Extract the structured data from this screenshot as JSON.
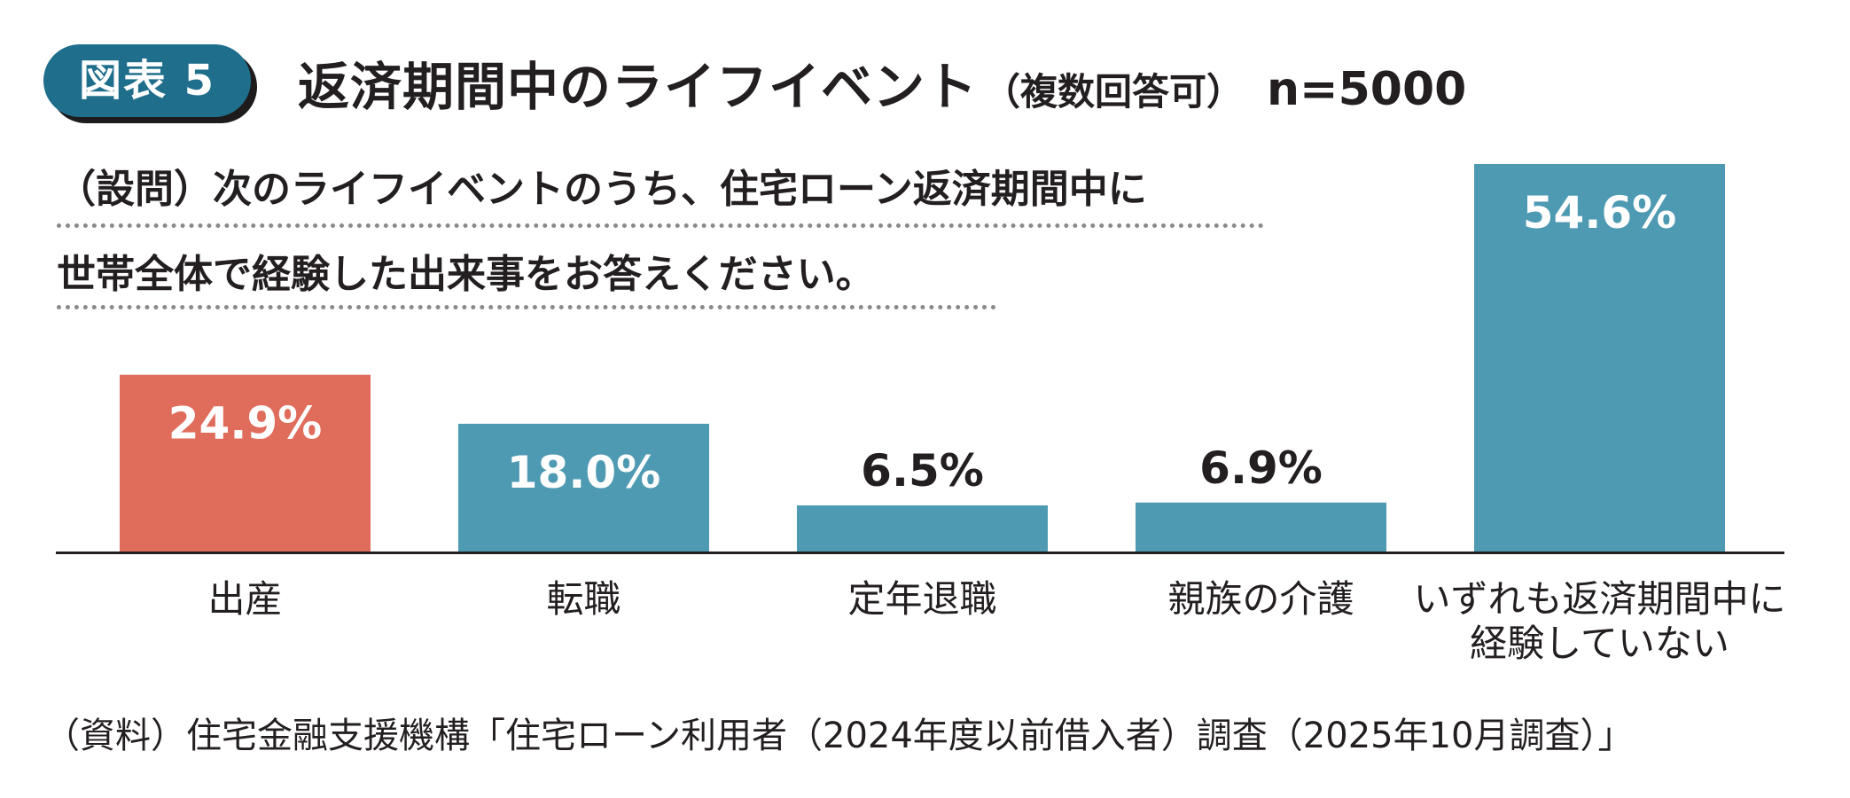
{
  "header": {
    "badge": "図表 5",
    "title": "返済期間中のライフイベント",
    "subtitle": "（複数回答可）",
    "sample": "n=5000"
  },
  "question": {
    "line1": "（設問）次のライフイベントのうち、住宅ローン返済期間中に",
    "line2": "世帯全体で経験した出来事をお答えください。"
  },
  "source": "（資料）住宅金融支援機構「住宅ローン利用者（2024年度以前借入者）調査（2025年10月調査）」",
  "colors": {
    "highlight_bar": "#e06c5b",
    "bar": "#4e9ab3",
    "badge": "#1f6e8c",
    "text": "#231f20"
  },
  "chart_data": {
    "type": "bar",
    "categories": [
      "出産",
      "転職",
      "定年退職",
      "親族の介護",
      "いずれも返済期間中に\n経験していない"
    ],
    "values": [
      24.9,
      18.0,
      6.5,
      6.9,
      54.6
    ],
    "data_labels": [
      "24.9%",
      "18.0%",
      "6.5%",
      "6.9%",
      "54.6%"
    ],
    "highlight": [
      true,
      false,
      false,
      false,
      false
    ],
    "unit": "%",
    "title": "",
    "xlabel": "",
    "ylabel": "",
    "ylim": [
      0,
      54.6
    ],
    "grid": false,
    "legend": "none"
  }
}
